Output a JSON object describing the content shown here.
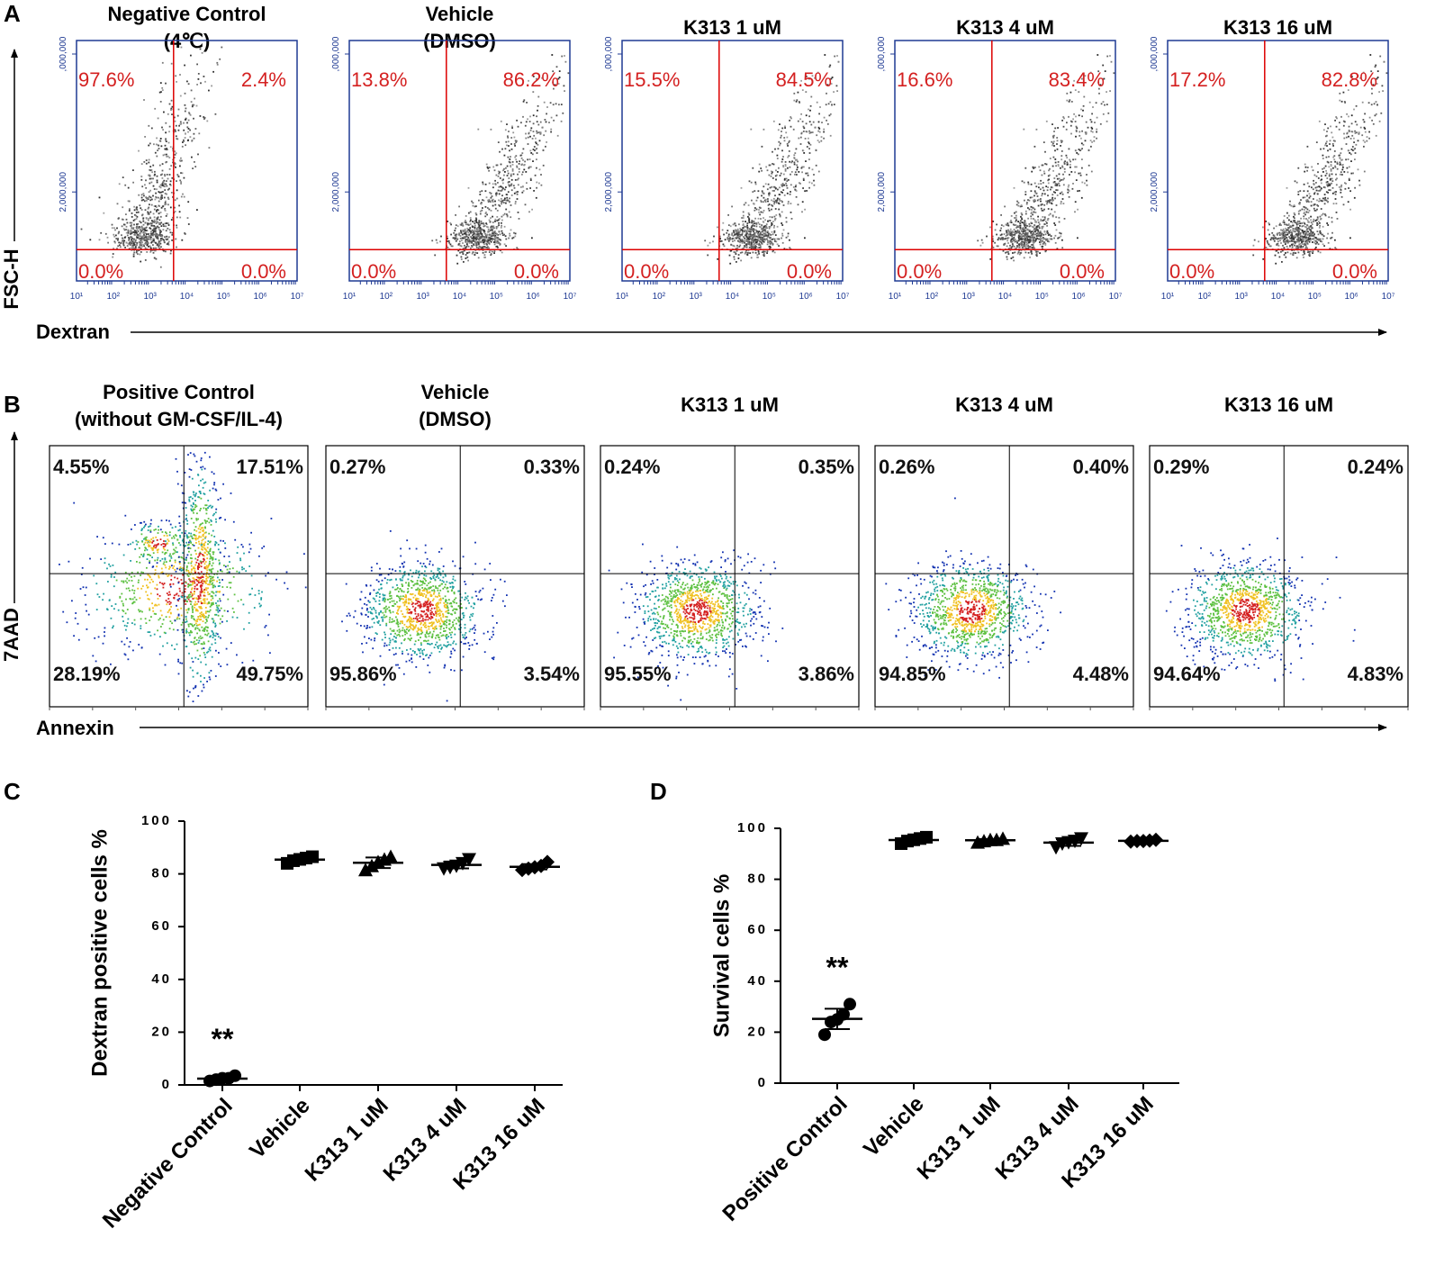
{
  "panel_labels": [
    "A",
    "B",
    "C",
    "D"
  ],
  "flow_dextran": {
    "y_label": "FSC-H",
    "x_label": "Dextran",
    "x_tick_labels": [
      "10¹",
      "10²",
      "10³",
      "10⁴",
      "10⁵",
      "10⁶",
      "10⁷"
    ],
    "y_tick_labels": [
      "2,000,000",
      ",000,000"
    ],
    "plots": [
      {
        "title": [
          "Negative Control",
          "(4℃)"
        ],
        "quadrants": [
          "97.6%",
          "2.4%",
          "0.0%",
          "0.0%"
        ]
      },
      {
        "title": [
          "Vehicle",
          "(DMSO)"
        ],
        "quadrants": [
          "13.8%",
          "86.2%",
          "0.0%",
          "0.0%"
        ]
      },
      {
        "title": [
          "K313 1 uM"
        ],
        "quadrants": [
          "15.5%",
          "84.5%",
          "0.0%",
          "0.0%"
        ]
      },
      {
        "title": [
          "K313 4 uM"
        ],
        "quadrants": [
          "16.6%",
          "83.4%",
          "0.0%",
          "0.0%"
        ]
      },
      {
        "title": [
          "K313 16 uM"
        ],
        "quadrants": [
          "17.2%",
          "82.8%",
          "0.0%",
          "0.0%"
        ]
      }
    ]
  },
  "flow_annexin": {
    "y_label": "7AAD",
    "x_label": "Annexin",
    "plots": [
      {
        "title": [
          "Positive Control",
          "(without GM-CSF/IL-4)"
        ],
        "quadrants": [
          "4.55%",
          "17.51%",
          "28.19%",
          "49.75%"
        ]
      },
      {
        "title": [
          "Vehicle",
          "(DMSO)"
        ],
        "quadrants": [
          "0.27%",
          "0.33%",
          "95.86%",
          "3.54%"
        ]
      },
      {
        "title": [
          "K313 1 uM"
        ],
        "quadrants": [
          "0.24%",
          "0.35%",
          "95.55%",
          "3.86%"
        ]
      },
      {
        "title": [
          "K313 4 uM"
        ],
        "quadrants": [
          "0.26%",
          "0.40%",
          "94.85%",
          "4.48%"
        ]
      },
      {
        "title": [
          "K313 16 uM"
        ],
        "quadrants": [
          "0.29%",
          "0.24%",
          "94.64%",
          "4.83%"
        ]
      }
    ]
  },
  "chart_data": [
    {
      "type": "dot",
      "y_label": "Dextran positive cells %",
      "annotation": "**",
      "categories": [
        "Negative Control",
        "Vehicle",
        "K313 1 uM",
        "K313 4 uM",
        "K313 16 uM"
      ],
      "markers": [
        "circle",
        "square",
        "triangle-up",
        "triangle-down",
        "diamond"
      ],
      "color": "#000000",
      "points": [
        [
          1.5,
          2,
          2.5,
          2.5,
          3.5
        ],
        [
          84,
          85,
          85.5,
          86,
          86.5
        ],
        [
          81.5,
          83,
          84.5,
          85.5,
          86.5
        ],
        [
          82,
          82.5,
          83,
          84,
          85.5
        ],
        [
          81.5,
          82,
          82.5,
          83,
          84.5
        ]
      ],
      "means": [
        2.4,
        85.4,
        84.2,
        83.4,
        82.7
      ],
      "errors": [
        0.8,
        1,
        2,
        1.3,
        1
      ],
      "ylim": [
        0,
        100
      ],
      "yticks": [
        0,
        20,
        40,
        60,
        80,
        100
      ]
    },
    {
      "type": "dot",
      "y_label": "Survival cells %",
      "annotation": "**",
      "categories": [
        "Positive Control",
        "Vehicle",
        "K313 1 uM",
        "K313 4 uM",
        "K313 16 uM"
      ],
      "markers": [
        "circle",
        "square",
        "triangle-up",
        "triangle-down",
        "diamond"
      ],
      "color": "#000000",
      "points": [
        [
          19,
          24,
          25,
          27,
          31
        ],
        [
          94,
          95,
          95.5,
          96,
          96.5
        ],
        [
          94.5,
          95,
          95.5,
          95.5,
          96
        ],
        [
          92.5,
          94,
          94.5,
          95,
          96
        ],
        [
          94.8,
          95,
          95,
          95.2,
          95.5
        ]
      ],
      "means": [
        25.2,
        95.4,
        95.3,
        94.4,
        95.1
      ],
      "errors": [
        4,
        1,
        0.5,
        1.3,
        0.3
      ],
      "ylim": [
        0,
        100
      ],
      "yticks": [
        0,
        20,
        40,
        60,
        80,
        100
      ]
    }
  ]
}
